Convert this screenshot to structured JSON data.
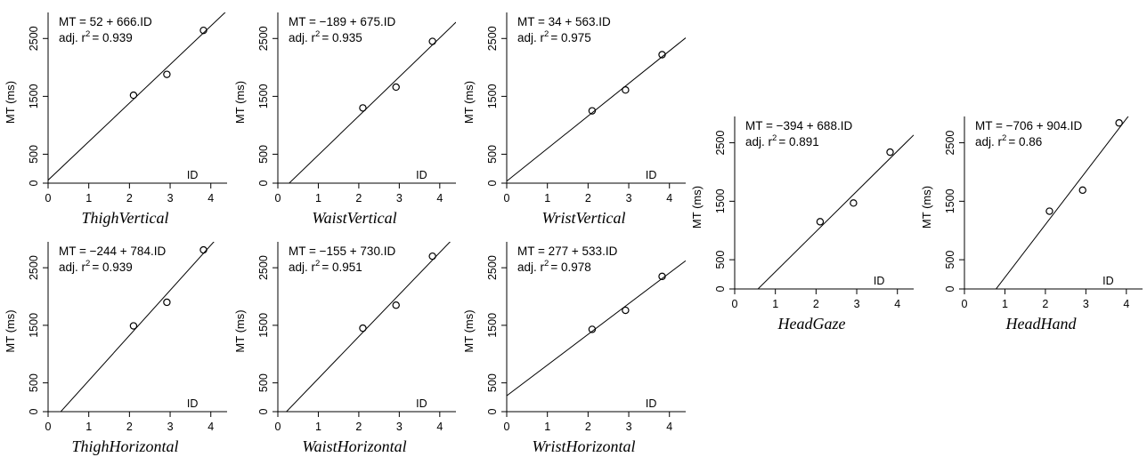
{
  "chart_data": [
    {
      "type": "scatter",
      "title": "ThighVertical",
      "ylabel": "MT (ms)",
      "xlabel": "ID",
      "equation": "MT = 52 + 666.ID",
      "r2_label": "adj. r",
      "r2_sup": "2",
      "r2_value": "= 0.939",
      "intercept": 52,
      "slope": 666,
      "x": [
        2.1,
        2.92,
        3.82
      ],
      "y": [
        1520,
        1880,
        2640
      ],
      "xlim": [
        0,
        4.4
      ],
      "ylim": [
        0,
        2950
      ],
      "xticks": [
        0,
        1,
        2,
        3,
        4
      ],
      "yticks": [
        0,
        500,
        1500,
        2500
      ]
    },
    {
      "type": "scatter",
      "title": "WaistVertical",
      "ylabel": "MT (ms)",
      "xlabel": "ID",
      "equation": "MT = −189 + 675.ID",
      "r2_label": "adj. r",
      "r2_sup": "2",
      "r2_value": "= 0.935",
      "intercept": -189,
      "slope": 675,
      "x": [
        2.1,
        2.92,
        3.82
      ],
      "y": [
        1300,
        1660,
        2450
      ],
      "xlim": [
        0,
        4.4
      ],
      "ylim": [
        0,
        2950
      ],
      "xticks": [
        0,
        1,
        2,
        3,
        4
      ],
      "yticks": [
        0,
        500,
        1500,
        2500
      ]
    },
    {
      "type": "scatter",
      "title": "WristVertical",
      "ylabel": "MT (ms)",
      "xlabel": "ID",
      "equation": "MT = 34 + 563.ID",
      "r2_label": "adj. r",
      "r2_sup": "2",
      "r2_value": "= 0.975",
      "intercept": 34,
      "slope": 563,
      "x": [
        2.1,
        2.92,
        3.82
      ],
      "y": [
        1250,
        1610,
        2220
      ],
      "xlim": [
        0,
        4.4
      ],
      "ylim": [
        0,
        2950
      ],
      "xticks": [
        0,
        1,
        2,
        3,
        4
      ],
      "yticks": [
        0,
        500,
        1500,
        2500
      ]
    },
    {
      "type": "scatter",
      "title": "ThighHorizontal",
      "ylabel": "MT (ms)",
      "xlabel": "ID",
      "equation": "MT = −244 + 784.ID",
      "r2_label": "adj. r",
      "r2_sup": "2",
      "r2_value": "= 0.939",
      "intercept": -244,
      "slope": 784,
      "x": [
        2.1,
        2.92,
        3.82
      ],
      "y": [
        1490,
        1900,
        2810
      ],
      "xlim": [
        0,
        4.4
      ],
      "ylim": [
        0,
        2950
      ],
      "xticks": [
        0,
        1,
        2,
        3,
        4
      ],
      "yticks": [
        0,
        500,
        1500,
        2500
      ]
    },
    {
      "type": "scatter",
      "title": "WaistHorizontal",
      "ylabel": "MT (ms)",
      "xlabel": "ID",
      "equation": "MT = −155 + 730.ID",
      "r2_label": "adj. r",
      "r2_sup": "2",
      "r2_value": "= 0.951",
      "intercept": -155,
      "slope": 730,
      "x": [
        2.1,
        2.92,
        3.82
      ],
      "y": [
        1450,
        1850,
        2700
      ],
      "xlim": [
        0,
        4.4
      ],
      "ylim": [
        0,
        2950
      ],
      "xticks": [
        0,
        1,
        2,
        3,
        4
      ],
      "yticks": [
        0,
        500,
        1500,
        2500
      ]
    },
    {
      "type": "scatter",
      "title": "WristHorizontal",
      "ylabel": "MT (ms)",
      "xlabel": "ID",
      "equation": "MT = 277 + 533.ID",
      "r2_label": "adj. r",
      "r2_sup": "2",
      "r2_value": "= 0.978",
      "intercept": 277,
      "slope": 533,
      "x": [
        2.1,
        2.92,
        3.82
      ],
      "y": [
        1430,
        1760,
        2350
      ],
      "xlim": [
        0,
        4.4
      ],
      "ylim": [
        0,
        2950
      ],
      "xticks": [
        0,
        1,
        2,
        3,
        4
      ],
      "yticks": [
        0,
        500,
        1500,
        2500
      ]
    },
    {
      "type": "scatter",
      "title": "HeadGaze",
      "ylabel": "MT (ms)",
      "xlabel": "ID",
      "equation": "MT = −394 + 688.ID",
      "r2_label": "adj. r",
      "r2_sup": "2",
      "r2_value": "= 0.891",
      "intercept": -394,
      "slope": 688,
      "x": [
        2.1,
        2.92,
        3.82
      ],
      "y": [
        1150,
        1470,
        2340
      ],
      "xlim": [
        0,
        4.4
      ],
      "ylim": [
        0,
        2950
      ],
      "xticks": [
        0,
        1,
        2,
        3,
        4
      ],
      "yticks": [
        0,
        500,
        1500,
        2500
      ]
    },
    {
      "type": "scatter",
      "title": "HeadHand",
      "ylabel": "MT (ms)",
      "xlabel": "ID",
      "equation": "MT = −706 + 904.ID",
      "r2_label": "adj. r",
      "r2_sup": "2",
      "r2_value": "= 0.86",
      "intercept": -706,
      "slope": 904,
      "x": [
        2.1,
        2.92,
        3.82
      ],
      "y": [
        1330,
        1690,
        2840
      ],
      "xlim": [
        0,
        4.4
      ],
      "ylim": [
        0,
        2950
      ],
      "xticks": [
        0,
        1,
        2,
        3,
        4
      ],
      "yticks": [
        0,
        500,
        1500,
        2500
      ]
    }
  ]
}
